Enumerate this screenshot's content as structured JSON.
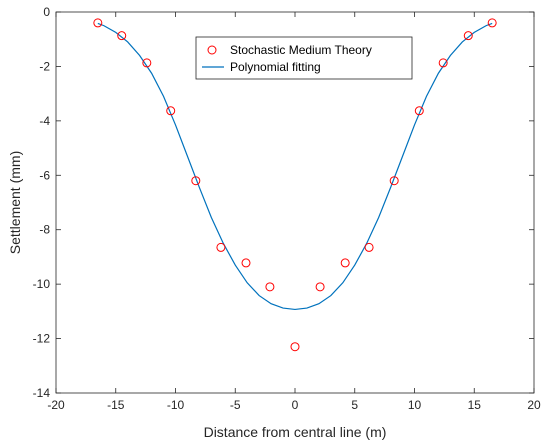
{
  "chart_data": {
    "type": "scatter",
    "title": "",
    "xlabel": "Distance from central line (m)",
    "ylabel": "Settlement (mm)",
    "xlim": [
      -20,
      20
    ],
    "ylim": [
      -14,
      0
    ],
    "xticks": [
      -20,
      -15,
      -10,
      -5,
      0,
      5,
      10,
      15,
      20
    ],
    "yticks": [
      0,
      -2,
      -4,
      -6,
      -8,
      -10,
      -12,
      -14
    ],
    "grid": false,
    "legend_position": "top-center",
    "series": [
      {
        "name": "Stochastic Medium Theory",
        "kind": "markers",
        "marker": "circle",
        "color": "#ff0000",
        "points": [
          [
            -16.5,
            -0.4
          ],
          [
            -14.5,
            -0.87
          ],
          [
            -12.4,
            -1.87
          ],
          [
            -10.4,
            -3.63
          ],
          [
            -8.3,
            -6.2
          ],
          [
            -6.2,
            -8.65
          ],
          [
            -4.1,
            -9.22
          ],
          [
            -2.1,
            -10.1
          ],
          [
            0,
            -12.3
          ],
          [
            2.1,
            -10.1
          ],
          [
            4.2,
            -9.22
          ],
          [
            6.2,
            -8.65
          ],
          [
            8.3,
            -6.2
          ],
          [
            10.4,
            -3.63
          ],
          [
            12.4,
            -1.87
          ],
          [
            14.5,
            -0.87
          ],
          [
            16.5,
            -0.4
          ]
        ]
      },
      {
        "name": "Polynomial fitting",
        "kind": "line",
        "color": "#0072bd",
        "points": [
          [
            -16.5,
            -0.42
          ],
          [
            -16,
            -0.5
          ],
          [
            -15,
            -0.75
          ],
          [
            -14,
            -1.1
          ],
          [
            -13,
            -1.6
          ],
          [
            -12,
            -2.25
          ],
          [
            -11,
            -3.1
          ],
          [
            -10,
            -4.15
          ],
          [
            -9,
            -5.3
          ],
          [
            -8,
            -6.45
          ],
          [
            -7,
            -7.55
          ],
          [
            -6,
            -8.5
          ],
          [
            -5,
            -9.3
          ],
          [
            -4,
            -9.95
          ],
          [
            -3,
            -10.42
          ],
          [
            -2,
            -10.72
          ],
          [
            -1,
            -10.88
          ],
          [
            0,
            -10.93
          ],
          [
            1,
            -10.88
          ],
          [
            2,
            -10.72
          ],
          [
            3,
            -10.42
          ],
          [
            4,
            -9.95
          ],
          [
            5,
            -9.3
          ],
          [
            6,
            -8.5
          ],
          [
            7,
            -7.55
          ],
          [
            8,
            -6.45
          ],
          [
            9,
            -5.3
          ],
          [
            10,
            -4.15
          ],
          [
            11,
            -3.1
          ],
          [
            12,
            -2.25
          ],
          [
            13,
            -1.6
          ],
          [
            14,
            -1.1
          ],
          [
            15,
            -0.75
          ],
          [
            16,
            -0.5
          ],
          [
            16.5,
            -0.42
          ]
        ]
      }
    ]
  }
}
